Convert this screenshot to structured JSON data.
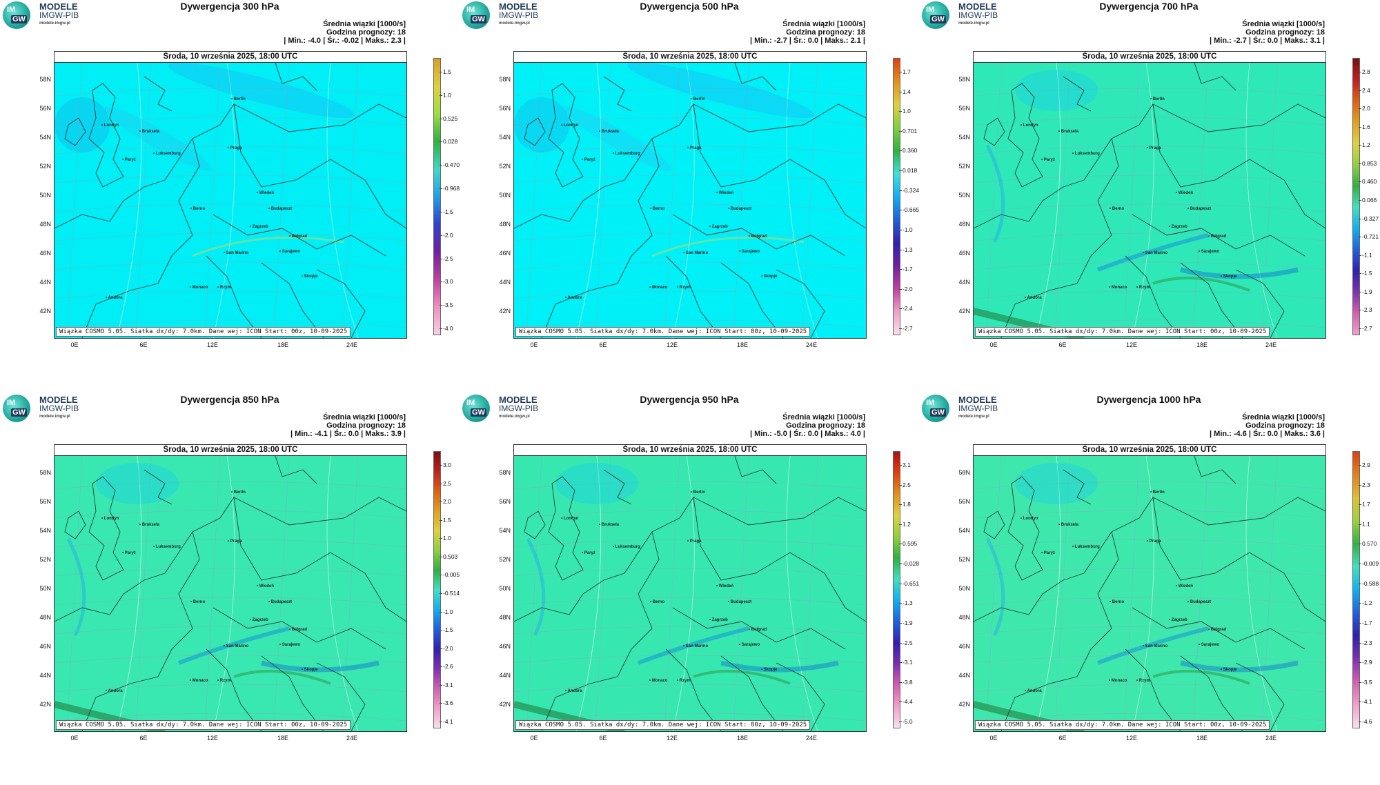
{
  "brand": {
    "line1": "MODELE",
    "line2": "IMGW-PIB",
    "url": "modele.imgw.pl",
    "mark_top": "IM",
    "mark_bottom": "GW"
  },
  "common": {
    "stat_line1": "Średnia wiązki [1000/s]",
    "stat_line2": "Godzina prognozy: 18",
    "date_header": "Środa, 10 września 2025, 18:00 UTC",
    "footer": "Wiązka COSMO 5.05. Siatka dx/dy: 7.0km. Dane wej: ICON Start: 00z, 10-09-2025",
    "lat_labels": [
      "58N",
      "56N",
      "54N",
      "52N",
      "50N",
      "48N",
      "46N",
      "44N",
      "42N"
    ],
    "lon_labels": [
      "0E",
      "6E",
      "12E",
      "18E",
      "24E"
    ]
  },
  "panels": [
    {
      "title": "Dywergencja 300 hPa",
      "minmax": "| Min.:    -4.0 | Śr.:   -0.02 | Maks.:    2.3 |",
      "scale": [
        "1.5",
        "1.0",
        "0.525",
        "0.028",
        "-0.470",
        "-0.968",
        "-1.5",
        "-2.0",
        "-2.5",
        "-3.0",
        "-3.5",
        "-4.0"
      ]
    },
    {
      "title": "Dywergencja 500 hPa",
      "minmax": "| Min.:    -2.7 | Śr.:    0.0 | Maks.:    2.1 |",
      "scale": [
        "1.7",
        "1.4",
        "1.0",
        "0.701",
        "0.360",
        "0.018",
        "-0.324",
        "-0.665",
        "-1.0",
        "-1.3",
        "-1.7",
        "-2.0",
        "-2.4",
        "-2.7"
      ]
    },
    {
      "title": "Dywergencja 700 hPa",
      "minmax": "| Min.:    -2.7 | Śr.:    0.0 | Maks.:    3.1 |",
      "scale": [
        "2.8",
        "2.4",
        "2.0",
        "1.6",
        "1.2",
        "0.853",
        "0.460",
        "0.066",
        "-0.327",
        "-0.721",
        "-1.1",
        "-1.5",
        "-1.9",
        "-2.3",
        "-2.7"
      ]
    },
    {
      "title": "Dywergencja 850 hPa",
      "minmax": "| Min.:    -4.1 | Śr.:    0.0 | Maks.:    3.9 |",
      "scale": [
        "3.0",
        "2.5",
        "2.0",
        "1.5",
        "1.0",
        "0.503",
        "-0.005",
        "-0.514",
        "-1.0",
        "-1.5",
        "-2.0",
        "-2.6",
        "-3.1",
        "-3.6",
        "-4.1"
      ]
    },
    {
      "title": "Dywergencja 950 hPa",
      "minmax": "| Min.:    -5.0 | Śr.:    0.0 | Maks.:    4.0 |",
      "scale": [
        "3.1",
        "2.5",
        "1.8",
        "1.2",
        "0.595",
        "-0.028",
        "-0.651",
        "-1.3",
        "-1.9",
        "-2.5",
        "-3.1",
        "-3.8",
        "-4.4",
        "-5.0"
      ]
    },
    {
      "title": "Dywergencja 1000 hPa",
      "minmax": "| Min.:    -4.6 | Śr.:    0.0 | Maks.:    3.6 |",
      "scale": [
        "2.9",
        "2.3",
        "1.7",
        "1.1",
        "0.570",
        "-0.009",
        "-0.588",
        "-1.2",
        "-1.7",
        "-2.3",
        "-2.9",
        "-3.5",
        "-4.1",
        "-4.6"
      ]
    }
  ],
  "cities": [
    "Londyn",
    "Bruksela",
    "Luksemburg",
    "Paryż",
    "Praga",
    "Berlin",
    "Wiedeń",
    "Budapeszt",
    "Berno",
    "Zagrzeb",
    "Belgrad",
    "San Marino",
    "Sarajewo",
    "Skopje",
    "Monaco",
    "Rzym",
    "Andora"
  ],
  "colors": {
    "map_bg_upper": "#00e8f0",
    "map_bg_lower": "#3ee8b0",
    "border_line": "#2a3a3a"
  }
}
